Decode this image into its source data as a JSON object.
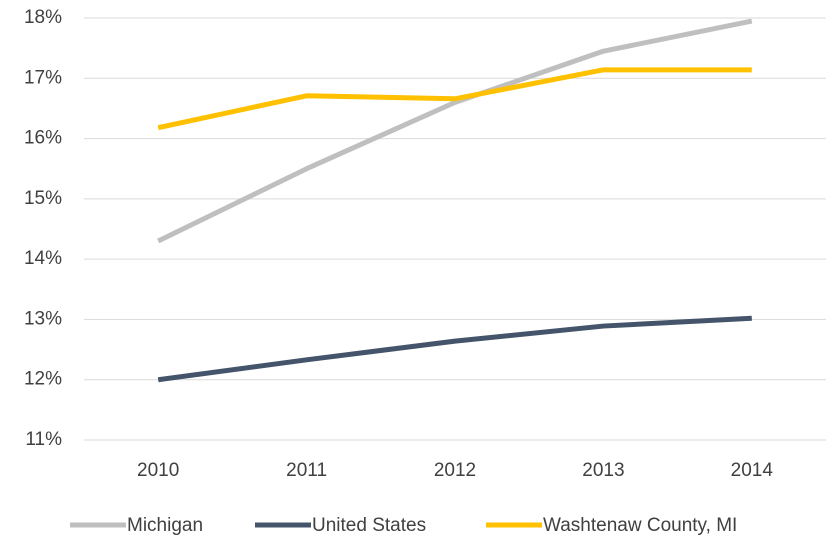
{
  "chart_data": {
    "type": "line",
    "categories": [
      "2010",
      "2011",
      "2012",
      "2013",
      "2014"
    ],
    "series": [
      {
        "name": "Michigan",
        "color": "#bfbfbf",
        "values": [
          14.3,
          15.5,
          16.6,
          17.45,
          17.95
        ]
      },
      {
        "name": "United States",
        "color": "#44546a",
        "values": [
          12.0,
          12.33,
          12.64,
          12.89,
          13.02
        ]
      },
      {
        "name": "Washtenaw County, MI",
        "color": "#ffc000",
        "values": [
          16.18,
          16.71,
          16.66,
          17.14,
          17.14
        ]
      }
    ],
    "ylim": [
      11,
      18
    ],
    "yticks": [
      {
        "value": 11,
        "label": "11%"
      },
      {
        "value": 12,
        "label": "12%"
      },
      {
        "value": 13,
        "label": "13%"
      },
      {
        "value": 14,
        "label": "14%"
      },
      {
        "value": 15,
        "label": "15%"
      },
      {
        "value": 16,
        "label": "16%"
      },
      {
        "value": 17,
        "label": "17%"
      },
      {
        "value": 18,
        "label": "18%"
      }
    ],
    "grid": true,
    "legend": "bottom"
  }
}
